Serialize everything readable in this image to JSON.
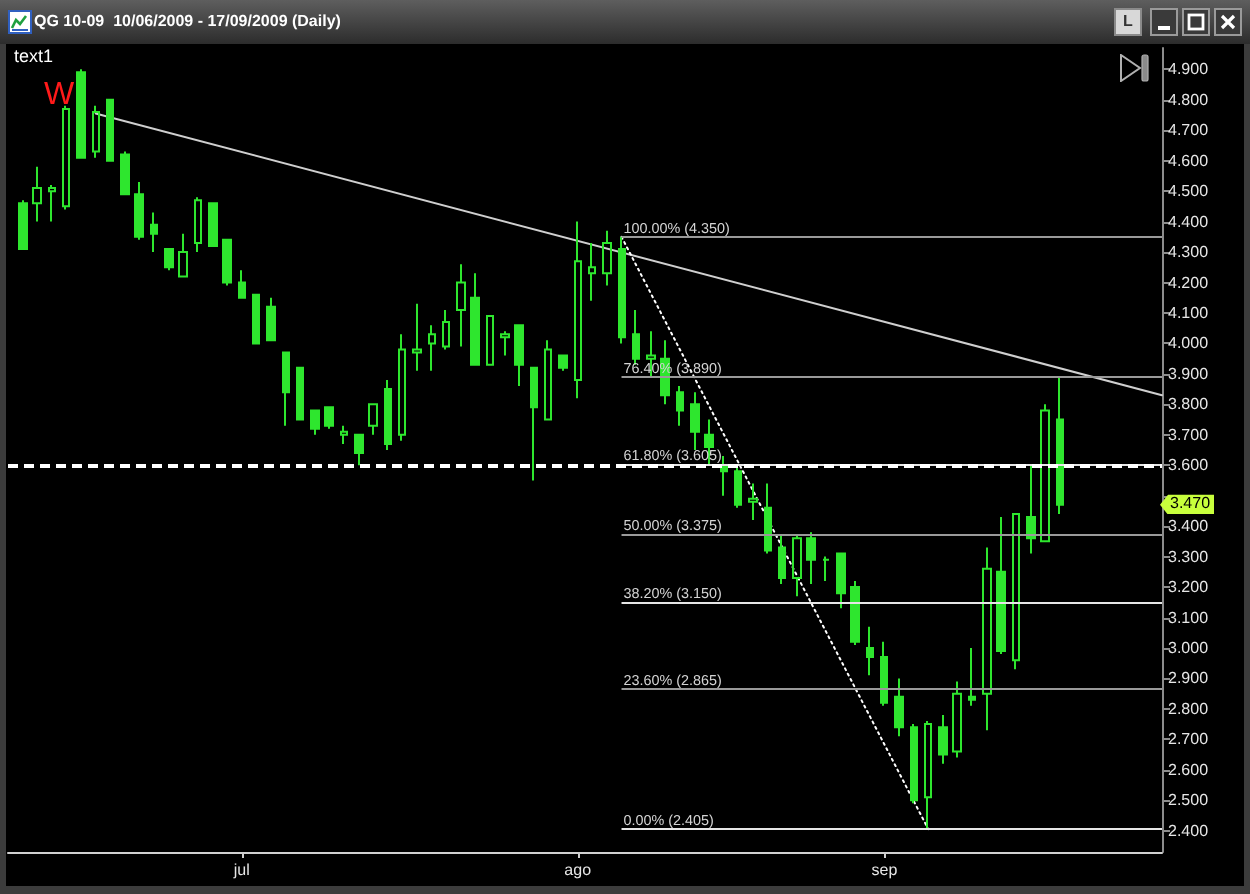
{
  "chart_data": {
    "type": "candlestick",
    "title": "QG 10-09  10/06/2009 - 17/09/2009 (Daily)",
    "categories": [
      null,
      null,
      null,
      null,
      null,
      null,
      null,
      null,
      null,
      null,
      null,
      null,
      null,
      null,
      null,
      null,
      "jul",
      null,
      null,
      null,
      null,
      null,
      null,
      null,
      null,
      null,
      null,
      null,
      null,
      null,
      null,
      null,
      null,
      null,
      null,
      null,
      null,
      null,
      null,
      "ago",
      null,
      null,
      null,
      null,
      null,
      null,
      null,
      null,
      null,
      null,
      null,
      null,
      null,
      null,
      null,
      null,
      null,
      null,
      null,
      null,
      "sep",
      null,
      null,
      null,
      null,
      null,
      null,
      null,
      null,
      null,
      null,
      null,
      null,
      null,
      null,
      null,
      null,
      null,
      null,
      null
    ],
    "series": [
      {
        "color": "#2ee62e",
        "ohlc": [
          null,
          [
            4.46,
            4.47,
            4.31,
            4.31
          ],
          [
            4.46,
            4.58,
            4.4,
            4.51
          ],
          [
            4.5,
            4.52,
            4.4,
            4.51
          ],
          [
            4.45,
            4.78,
            4.44,
            4.77
          ],
          [
            4.89,
            4.9,
            4.61,
            4.61
          ],
          [
            4.63,
            4.78,
            4.61,
            4.76
          ],
          [
            4.8,
            4.8,
            4.6,
            4.6
          ],
          [
            4.62,
            4.63,
            4.49,
            4.49
          ],
          [
            4.49,
            4.53,
            4.34,
            4.35
          ],
          [
            4.39,
            4.43,
            4.3,
            4.36
          ],
          [
            4.31,
            4.31,
            4.24,
            4.25
          ],
          [
            4.22,
            4.36,
            4.22,
            4.3
          ],
          [
            4.33,
            4.48,
            4.3,
            4.47
          ],
          [
            4.46,
            4.46,
            4.32,
            4.32
          ],
          [
            4.34,
            4.34,
            4.19,
            4.2
          ],
          [
            4.2,
            4.24,
            4.15,
            4.15
          ],
          [
            4.16,
            4.16,
            4.0,
            4.0
          ],
          [
            4.12,
            4.15,
            4.01,
            4.01
          ],
          [
            3.97,
            3.97,
            3.73,
            3.84
          ],
          [
            3.92,
            3.92,
            3.75,
            3.75
          ],
          [
            3.78,
            3.78,
            3.7,
            3.72
          ],
          [
            3.79,
            3.79,
            3.72,
            3.73
          ],
          [
            3.7,
            3.73,
            3.67,
            3.71
          ],
          [
            3.7,
            3.7,
            3.6,
            3.64
          ],
          [
            3.73,
            3.8,
            3.7,
            3.8
          ],
          [
            3.85,
            3.88,
            3.65,
            3.67
          ],
          [
            3.7,
            4.03,
            3.68,
            3.98
          ],
          [
            3.97,
            4.13,
            3.91,
            3.98
          ],
          [
            4.0,
            4.06,
            3.91,
            4.03
          ],
          [
            3.99,
            4.11,
            3.98,
            4.07
          ],
          [
            4.11,
            4.26,
            3.99,
            4.2
          ],
          [
            4.15,
            4.23,
            3.93,
            3.93
          ],
          [
            3.93,
            4.09,
            3.93,
            4.09
          ],
          [
            4.02,
            4.04,
            3.96,
            4.03
          ],
          [
            4.06,
            4.06,
            3.86,
            3.93
          ],
          [
            3.92,
            3.92,
            3.55,
            3.79
          ],
          [
            3.75,
            4.01,
            3.75,
            3.98
          ],
          [
            3.96,
            3.96,
            3.91,
            3.92
          ],
          [
            3.88,
            4.4,
            3.82,
            4.27
          ],
          [
            4.23,
            4.33,
            4.14,
            4.25
          ],
          [
            4.23,
            4.37,
            4.19,
            4.33
          ],
          [
            4.31,
            4.35,
            4.0,
            4.02
          ],
          [
            4.03,
            4.11,
            3.93,
            3.95
          ],
          [
            3.95,
            4.04,
            3.89,
            3.96
          ],
          [
            3.95,
            4.01,
            3.8,
            3.83
          ],
          [
            3.84,
            3.86,
            3.73,
            3.78
          ],
          [
            3.8,
            3.84,
            3.65,
            3.71
          ],
          [
            3.7,
            3.75,
            3.6,
            3.66
          ],
          [
            3.6,
            3.63,
            3.5,
            3.58
          ],
          [
            3.58,
            3.6,
            3.46,
            3.47
          ],
          [
            3.48,
            3.54,
            3.42,
            3.49
          ],
          [
            3.46,
            3.54,
            3.31,
            3.32
          ],
          [
            3.33,
            3.37,
            3.21,
            3.23
          ],
          [
            3.23,
            3.37,
            3.17,
            3.36
          ],
          [
            3.36,
            3.38,
            3.21,
            3.29
          ],
          [
            3.29,
            3.3,
            3.22,
            3.29
          ],
          [
            3.31,
            3.31,
            3.13,
            3.18
          ],
          [
            3.2,
            3.22,
            3.01,
            3.02
          ],
          [
            3.0,
            3.07,
            2.91,
            2.97
          ],
          [
            2.97,
            3.02,
            2.81,
            2.82
          ],
          [
            2.84,
            2.9,
            2.71,
            2.74
          ],
          [
            2.74,
            2.75,
            2.49,
            2.5
          ],
          [
            2.51,
            2.76,
            2.405,
            2.75
          ],
          [
            2.74,
            2.78,
            2.62,
            2.65
          ],
          [
            2.66,
            2.89,
            2.64,
            2.85
          ],
          [
            2.84,
            3.0,
            2.81,
            2.83
          ],
          [
            2.85,
            3.33,
            2.73,
            3.26
          ],
          [
            3.25,
            3.43,
            2.98,
            2.99
          ],
          [
            2.96,
            3.44,
            2.93,
            3.44
          ],
          [
            3.43,
            3.6,
            3.31,
            3.36
          ],
          [
            3.35,
            3.8,
            3.35,
            3.78
          ],
          [
            3.75,
            3.89,
            3.44,
            3.47
          ],
          null,
          null,
          null,
          null,
          null,
          null,
          null
        ]
      },
      {
        "type": "line",
        "color": "#cfcfcf",
        "marker": "none",
        "line_style": "solid",
        "values": [
          null,
          null,
          null,
          null,
          null,
          null,
          4.755,
          null,
          null,
          null,
          null,
          null,
          null,
          null,
          null,
          null,
          null,
          null,
          null,
          null,
          null,
          null,
          null,
          null,
          null,
          null,
          null,
          null,
          null,
          null,
          null,
          null,
          null,
          null,
          null,
          null,
          null,
          null,
          null,
          null,
          null,
          null,
          null,
          null,
          null,
          null,
          null,
          null,
          null,
          null,
          null,
          null,
          null,
          null,
          null,
          null,
          null,
          null,
          null,
          null,
          null,
          null,
          null,
          null,
          null,
          null,
          null,
          null,
          null,
          null,
          null,
          null,
          null,
          null,
          null,
          null,
          null,
          null,
          null,
          3.83
        ]
      },
      {
        "type": "line",
        "color": "#ffffff",
        "marker": "none",
        "line_style": "dotted",
        "values": [
          null,
          null,
          null,
          null,
          null,
          null,
          null,
          null,
          null,
          null,
          null,
          null,
          null,
          null,
          null,
          null,
          null,
          null,
          null,
          null,
          null,
          null,
          null,
          null,
          null,
          null,
          null,
          null,
          null,
          null,
          null,
          null,
          null,
          null,
          null,
          null,
          null,
          null,
          null,
          null,
          null,
          null,
          4.35,
          null,
          null,
          null,
          null,
          null,
          null,
          null,
          null,
          null,
          null,
          null,
          null,
          null,
          null,
          null,
          null,
          null,
          null,
          null,
          null,
          2.405,
          null,
          null,
          null,
          null,
          null,
          null,
          null,
          null,
          null,
          null,
          null,
          null,
          null,
          null,
          null,
          null
        ]
      }
    ],
    "ylim": [
      2.33,
      4.97
    ],
    "yticks": [
      {
        "value": 2.4,
        "label": "2.400"
      },
      {
        "value": 2.5,
        "label": "2.500"
      },
      {
        "value": 2.6,
        "label": "2.600"
      },
      {
        "value": 2.7,
        "label": "2.700"
      },
      {
        "value": 2.8,
        "label": "2.800"
      },
      {
        "value": 2.9,
        "label": "2.900"
      },
      {
        "value": 3.0,
        "label": "3.000"
      },
      {
        "value": 3.1,
        "label": "3.100"
      },
      {
        "value": 3.2,
        "label": "3.200"
      },
      {
        "value": 3.3,
        "label": "3.300"
      },
      {
        "value": 3.4,
        "label": "3.400"
      },
      {
        "value": 3.5,
        "label": null
      },
      {
        "value": 3.6,
        "label": "3.600"
      },
      {
        "value": 3.7,
        "label": "3.700"
      },
      {
        "value": 3.8,
        "label": "3.800"
      },
      {
        "value": 3.9,
        "label": "3.900"
      },
      {
        "value": 4.0,
        "label": "4.000"
      },
      {
        "value": 4.1,
        "label": "4.100"
      },
      {
        "value": 4.2,
        "label": "4.200"
      },
      {
        "value": 4.3,
        "label": "4.300"
      },
      {
        "value": 4.4,
        "label": "4.400"
      },
      {
        "value": 4.5,
        "label": "4.500"
      },
      {
        "value": 4.6,
        "label": "4.600"
      },
      {
        "value": 4.7,
        "label": "4.700"
      },
      {
        "value": 4.8,
        "label": "4.800"
      },
      {
        "value": 4.9,
        "label": "4.900"
      }
    ],
    "ref_lines": [
      {
        "axis": "y",
        "value": 4.35,
        "label": "100.00% (4.350)",
        "color": "#9a9a9a"
      },
      {
        "axis": "y",
        "value": 3.89,
        "label": "76.40% (3.890)",
        "color": "#9a9a9a"
      },
      {
        "axis": "y",
        "value": 3.605,
        "label": "61.80% (3.605)",
        "color": "#e6e6e6"
      },
      {
        "axis": "y",
        "value": 3.375,
        "label": "50.00% (3.375)",
        "color": "#9a9a9a"
      },
      {
        "axis": "y",
        "value": 3.15,
        "label": "38.20% (3.150)",
        "color": "#e6e6e6"
      },
      {
        "axis": "y",
        "value": 2.865,
        "label": "23.60% (2.865)",
        "color": "#9a9a9a"
      },
      {
        "axis": "y",
        "value": 2.405,
        "label": "0.00% (2.405)",
        "color": "#e6e6e6"
      },
      {
        "axis": "y",
        "value": 3.6,
        "color": "#ffffff",
        "line_style": "dashed"
      }
    ],
    "annotations": [
      "text1",
      "W",
      "L",
      {
        "text": "3.470",
        "y": 3.47
      }
    ]
  }
}
